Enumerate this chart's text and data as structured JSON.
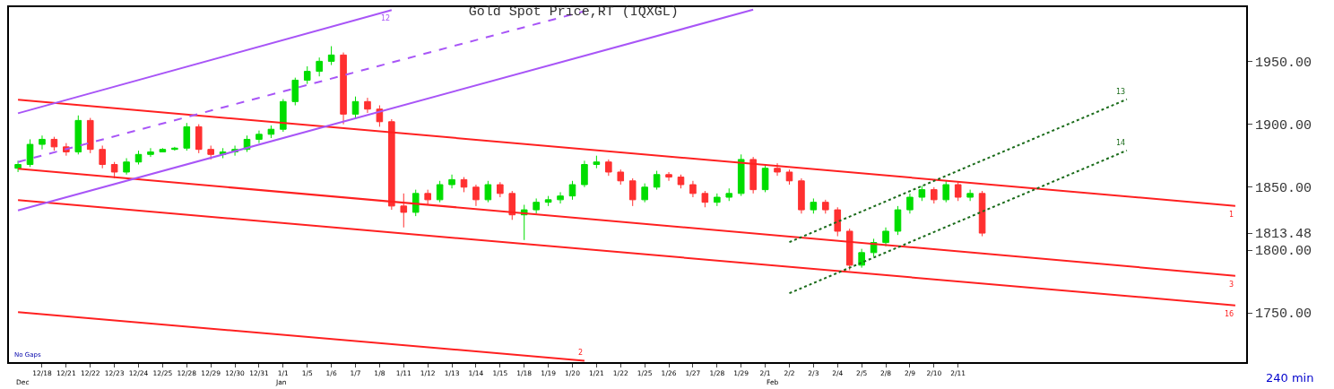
{
  "chart_data": {
    "type": "candlestick",
    "title": "Gold Spot Price,RT (IQXGL)",
    "annotations": [
      "No Gaps",
      "240 min",
      "Dec",
      "Jan",
      "Feb"
    ],
    "categories": [
      null,
      null,
      "12/18",
      null,
      "12/21",
      null,
      "12/22",
      null,
      "12/23",
      null,
      "12/24",
      null,
      "12/25",
      null,
      "12/28",
      null,
      "12/29",
      null,
      "12/30",
      null,
      "12/31",
      null,
      "1/1",
      null,
      "1/5",
      null,
      "1/6",
      null,
      "1/7",
      null,
      "1/8",
      null,
      "1/11",
      null,
      "1/12",
      null,
      "1/13",
      null,
      "1/14",
      null,
      "1/15",
      null,
      "1/18",
      null,
      "1/19",
      null,
      "1/20",
      null,
      "1/21",
      null,
      "1/22",
      null,
      "1/25",
      null,
      "1/26",
      null,
      "1/27",
      null,
      "1/28",
      null,
      "1/29",
      null,
      "2/1",
      null,
      "2/2",
      null,
      "2/3",
      null,
      "2/4",
      null,
      "2/5",
      null,
      "2/8",
      null,
      "2/9",
      null,
      "2/10",
      null,
      "2/11",
      null,
      null,
      null,
      null,
      null,
      null,
      null,
      null,
      null,
      null,
      null,
      null,
      null,
      null,
      null,
      null,
      null,
      null,
      null,
      null,
      null,
      null,
      null
    ],
    "ohlc": [
      [
        1865,
        1871,
        1862,
        1868
      ],
      [
        1868,
        1888,
        1866,
        1884
      ],
      [
        1884,
        1891,
        1880,
        1888
      ],
      [
        1888,
        1890,
        1879,
        1882
      ],
      [
        1882,
        1885,
        1875,
        1878
      ],
      [
        1878,
        1907,
        1876,
        1903
      ],
      [
        1903,
        1905,
        1877,
        1880
      ],
      [
        1880,
        1883,
        1865,
        1868
      ],
      [
        1868,
        1870,
        1857,
        1862
      ],
      [
        1862,
        1873,
        1860,
        1870
      ],
      [
        1870,
        1879,
        1868,
        1876
      ],
      [
        1876,
        1881,
        1874,
        1878
      ],
      [
        1878,
        1881,
        1878,
        1880
      ],
      [
        1880,
        1882,
        1879,
        1881
      ],
      [
        1881,
        1901,
        1879,
        1898
      ],
      [
        1898,
        1900,
        1877,
        1880
      ],
      [
        1880,
        1883,
        1872,
        1876
      ],
      [
        1876,
        1881,
        1873,
        1878
      ],
      [
        1878,
        1883,
        1875,
        1880
      ],
      [
        1880,
        1891,
        1878,
        1888
      ],
      [
        1888,
        1895,
        1885,
        1892
      ],
      [
        1892,
        1899,
        1889,
        1896
      ],
      [
        1896,
        1920,
        1894,
        1918
      ],
      [
        1918,
        1937,
        1915,
        1935
      ],
      [
        1935,
        1946,
        1932,
        1942
      ],
      [
        1942,
        1953,
        1938,
        1950
      ],
      [
        1950,
        1962,
        1947,
        1955
      ],
      [
        1955,
        1957,
        1900,
        1908
      ],
      [
        1908,
        1922,
        1905,
        1918
      ],
      [
        1918,
        1921,
        1909,
        1912
      ],
      [
        1912,
        1915,
        1898,
        1902
      ],
      [
        1902,
        1904,
        1832,
        1835
      ],
      [
        1835,
        1845,
        1818,
        1830
      ],
      [
        1830,
        1848,
        1827,
        1845
      ],
      [
        1845,
        1848,
        1836,
        1840
      ],
      [
        1840,
        1855,
        1838,
        1852
      ],
      [
        1852,
        1860,
        1849,
        1856
      ],
      [
        1856,
        1858,
        1846,
        1850
      ],
      [
        1850,
        1852,
        1835,
        1840
      ],
      [
        1840,
        1855,
        1838,
        1852
      ],
      [
        1852,
        1854,
        1842,
        1845
      ],
      [
        1845,
        1847,
        1824,
        1828
      ],
      [
        1828,
        1836,
        1808,
        1832
      ],
      [
        1832,
        1841,
        1829,
        1838
      ],
      [
        1838,
        1843,
        1835,
        1840
      ],
      [
        1840,
        1846,
        1837,
        1843
      ],
      [
        1843,
        1855,
        1840,
        1852
      ],
      [
        1852,
        1871,
        1850,
        1868
      ],
      [
        1868,
        1875,
        1865,
        1870
      ],
      [
        1870,
        1872,
        1859,
        1862
      ],
      [
        1862,
        1864,
        1852,
        1855
      ],
      [
        1855,
        1857,
        1835,
        1840
      ],
      [
        1840,
        1853,
        1838,
        1850
      ],
      [
        1850,
        1863,
        1848,
        1860
      ],
      [
        1860,
        1862,
        1855,
        1858
      ],
      [
        1858,
        1860,
        1849,
        1852
      ],
      [
        1852,
        1855,
        1842,
        1845
      ],
      [
        1845,
        1847,
        1834,
        1838
      ],
      [
        1838,
        1845,
        1835,
        1842
      ],
      [
        1842,
        1849,
        1839,
        1845
      ],
      [
        1845,
        1876,
        1843,
        1872
      ],
      [
        1872,
        1874,
        1845,
        1848
      ],
      [
        1848,
        1868,
        1846,
        1865
      ],
      [
        1865,
        1869,
        1859,
        1862
      ],
      [
        1862,
        1864,
        1852,
        1855
      ],
      [
        1855,
        1857,
        1829,
        1832
      ],
      [
        1832,
        1841,
        1829,
        1838
      ],
      [
        1838,
        1840,
        1829,
        1832
      ],
      [
        1832,
        1834,
        1811,
        1815
      ],
      [
        1815,
        1817,
        1784,
        1788
      ],
      [
        1788,
        1801,
        1786,
        1798
      ],
      [
        1798,
        1809,
        1795,
        1806
      ],
      [
        1806,
        1818,
        1803,
        1815
      ],
      [
        1815,
        1835,
        1812,
        1832
      ],
      [
        1832,
        1845,
        1829,
        1842
      ],
      [
        1842,
        1851,
        1839,
        1848
      ],
      [
        1848,
        1850,
        1837,
        1840
      ],
      [
        1840,
        1855,
        1838,
        1852
      ],
      [
        1852,
        1854,
        1839,
        1842
      ],
      [
        1842,
        1848,
        1839,
        1845
      ],
      [
        1845,
        1847,
        1811,
        1813.48
      ],
      null,
      null,
      null,
      null,
      null,
      null,
      null,
      null,
      null,
      null,
      null,
      null,
      null,
      null,
      null,
      null,
      null,
      null,
      null,
      null,
      null
    ],
    "series": [
      {
        "type": "line",
        "name": "1",
        "color": "#ff2020",
        "line_style": "solid",
        "values": [
          1919.4,
          null,
          null,
          null,
          null,
          null,
          null,
          null,
          null,
          null,
          null,
          null,
          null,
          null,
          null,
          null,
          null,
          null,
          null,
          null,
          null,
          null,
          null,
          null,
          null,
          null,
          null,
          null,
          null,
          null,
          null,
          null,
          null,
          null,
          null,
          null,
          null,
          null,
          null,
          null,
          null,
          null,
          null,
          null,
          null,
          null,
          null,
          null,
          null,
          null,
          null,
          null,
          null,
          null,
          null,
          null,
          null,
          null,
          null,
          null,
          null,
          null,
          null,
          null,
          null,
          null,
          null,
          null,
          null,
          null,
          null,
          null,
          null,
          null,
          null,
          null,
          null,
          null,
          null,
          null,
          null,
          null,
          null,
          null,
          null,
          null,
          null,
          null,
          null,
          null,
          null,
          null,
          null,
          null,
          null,
          null,
          null,
          null,
          null,
          null,
          null,
          1835.1
        ]
      },
      {
        "type": "line",
        "name": "3",
        "color": "#ff2020",
        "line_style": "solid",
        "values": [
          1864.6,
          null,
          null,
          null,
          null,
          null,
          null,
          null,
          null,
          null,
          null,
          null,
          null,
          null,
          null,
          null,
          null,
          null,
          null,
          null,
          null,
          null,
          null,
          null,
          null,
          null,
          null,
          null,
          null,
          null,
          null,
          null,
          null,
          null,
          null,
          null,
          null,
          null,
          null,
          null,
          null,
          null,
          null,
          null,
          null,
          null,
          null,
          null,
          null,
          null,
          null,
          null,
          null,
          null,
          null,
          null,
          null,
          null,
          null,
          null,
          null,
          null,
          null,
          null,
          null,
          null,
          null,
          null,
          null,
          null,
          null,
          null,
          null,
          null,
          null,
          null,
          null,
          null,
          null,
          null,
          null,
          null,
          null,
          null,
          null,
          null,
          null,
          null,
          null,
          null,
          null,
          null,
          null,
          null,
          null,
          null,
          null,
          null,
          null,
          null,
          null,
          1779.6
        ]
      },
      {
        "type": "line",
        "name": "16",
        "color": "#ff2020",
        "line_style": "solid",
        "values": [
          1839.7,
          null,
          null,
          null,
          null,
          null,
          null,
          null,
          null,
          null,
          null,
          null,
          null,
          null,
          null,
          null,
          null,
          null,
          null,
          null,
          null,
          null,
          null,
          null,
          null,
          null,
          null,
          null,
          null,
          null,
          null,
          null,
          null,
          null,
          null,
          null,
          null,
          null,
          null,
          null,
          null,
          null,
          null,
          null,
          null,
          null,
          null,
          null,
          null,
          null,
          null,
          null,
          null,
          null,
          null,
          null,
          null,
          null,
          null,
          null,
          null,
          null,
          null,
          null,
          null,
          null,
          null,
          null,
          null,
          null,
          null,
          null,
          null,
          null,
          null,
          null,
          null,
          null,
          null,
          null,
          null,
          null,
          null,
          null,
          null,
          null,
          null,
          null,
          null,
          null,
          null,
          null,
          null,
          null,
          null,
          null,
          null,
          null,
          null,
          null,
          null,
          1756.1
        ]
      },
      {
        "type": "line",
        "name": "2",
        "color": "#ff2020",
        "line_style": "solid",
        "values": [
          1750.7,
          null,
          null,
          null,
          null,
          null,
          null,
          null,
          null,
          null,
          null,
          null,
          null,
          null,
          null,
          null,
          null,
          null,
          null,
          null,
          null,
          null,
          null,
          null,
          null,
          null,
          null,
          null,
          null,
          null,
          null,
          null,
          null,
          null,
          null,
          null,
          null,
          null,
          null,
          null,
          null,
          null,
          null,
          null,
          null,
          null,
          null,
          1712.1,
          null,
          null,
          null,
          null,
          null,
          null,
          null,
          null,
          null,
          null,
          null,
          null,
          null,
          null,
          null,
          null,
          null,
          null,
          null,
          null,
          null,
          null,
          null,
          null,
          null,
          null,
          null,
          null,
          null,
          null,
          null,
          null,
          null,
          null,
          null,
          null,
          null,
          null,
          null,
          null,
          null,
          null,
          null,
          null,
          null,
          null,
          null,
          null,
          null,
          null,
          null,
          null,
          null,
          null
        ]
      },
      {
        "type": "line",
        "name": "12",
        "color": "#a855f7",
        "line_style": "solid",
        "values": [
          1908.7,
          null,
          null,
          null,
          null,
          null,
          null,
          null,
          null,
          null,
          null,
          null,
          null,
          null,
          null,
          null,
          null,
          null,
          null,
          null,
          null,
          null,
          null,
          null,
          null,
          null,
          null,
          null,
          null,
          null,
          null,
          1990.7,
          null,
          null,
          null,
          null,
          null,
          null,
          null,
          null,
          null,
          null,
          null,
          null,
          null,
          null,
          null,
          null,
          null,
          null,
          null,
          null,
          null,
          null,
          null,
          null,
          null,
          null,
          null,
          null,
          null,
          null,
          null,
          null,
          null,
          null,
          null,
          null,
          null,
          null,
          null,
          null,
          null,
          null,
          null,
          null,
          null,
          null,
          null,
          null,
          null,
          null,
          null,
          null,
          null,
          null,
          null,
          null,
          null,
          null,
          null,
          null,
          null,
          null,
          null,
          null,
          null,
          null,
          null,
          null,
          null,
          null
        ]
      },
      {
        "type": "line",
        "color": "#a855f7",
        "line_style": "dashed",
        "values": [
          1870.0,
          null,
          null,
          null,
          null,
          null,
          null,
          null,
          null,
          null,
          null,
          null,
          null,
          null,
          null,
          null,
          null,
          null,
          null,
          null,
          null,
          null,
          null,
          null,
          null,
          null,
          null,
          null,
          null,
          null,
          null,
          null,
          null,
          null,
          null,
          null,
          null,
          null,
          null,
          null,
          null,
          null,
          null,
          null,
          null,
          null,
          null,
          1989.8,
          null,
          null,
          null,
          null,
          null,
          null,
          null,
          null,
          null,
          null,
          null,
          null,
          null,
          null,
          null,
          null,
          null,
          null,
          null,
          null,
          null,
          null,
          null,
          null,
          null,
          null,
          null,
          null,
          null,
          null,
          null,
          null,
          null,
          null,
          null,
          null,
          null,
          null,
          null,
          null,
          null,
          null,
          null,
          null,
          null,
          null,
          null,
          null,
          null,
          null,
          null,
          null,
          null,
          null
        ]
      },
      {
        "type": "line",
        "color": "#a855f7",
        "line_style": "solid",
        "values": [
          1831.5,
          null,
          null,
          null,
          null,
          null,
          null,
          null,
          null,
          null,
          null,
          null,
          null,
          null,
          null,
          null,
          null,
          null,
          null,
          null,
          null,
          null,
          null,
          null,
          null,
          null,
          null,
          null,
          null,
          null,
          null,
          null,
          null,
          null,
          null,
          null,
          null,
          null,
          null,
          null,
          null,
          null,
          null,
          null,
          null,
          null,
          null,
          null,
          null,
          null,
          null,
          null,
          null,
          null,
          null,
          null,
          null,
          null,
          null,
          null,
          null,
          1991.0,
          null,
          null,
          null,
          null,
          null,
          null,
          null,
          null,
          null,
          null,
          null,
          null,
          null,
          null,
          null,
          null,
          null,
          null,
          null,
          null,
          null,
          null,
          null,
          null,
          null,
          null,
          null,
          null,
          null,
          null,
          null,
          null,
          null,
          null,
          null,
          null,
          null,
          null,
          null,
          null
        ]
      },
      {
        "type": "line",
        "name": "13",
        "color": "#1a6b1a",
        "line_style": "dotted",
        "values": [
          null,
          null,
          null,
          null,
          null,
          null,
          null,
          null,
          null,
          null,
          null,
          null,
          null,
          null,
          null,
          null,
          null,
          null,
          null,
          null,
          null,
          null,
          null,
          null,
          null,
          null,
          null,
          null,
          null,
          null,
          null,
          null,
          null,
          null,
          null,
          null,
          null,
          null,
          null,
          null,
          null,
          null,
          null,
          null,
          null,
          null,
          null,
          null,
          null,
          null,
          null,
          null,
          null,
          null,
          null,
          null,
          null,
          null,
          null,
          null,
          null,
          null,
          null,
          null,
          1806.3,
          null,
          null,
          null,
          null,
          null,
          null,
          null,
          null,
          null,
          null,
          null,
          null,
          null,
          null,
          null,
          null,
          null,
          null,
          null,
          null,
          null,
          null,
          null,
          null,
          null,
          null,
          null,
          1919.8,
          null,
          null,
          null,
          null,
          null,
          null,
          null,
          null,
          null
        ]
      },
      {
        "type": "line",
        "name": "14",
        "color": "#1a6b1a",
        "line_style": "dotted",
        "values": [
          null,
          null,
          null,
          null,
          null,
          null,
          null,
          null,
          null,
          null,
          null,
          null,
          null,
          null,
          null,
          null,
          null,
          null,
          null,
          null,
          null,
          null,
          null,
          null,
          null,
          null,
          null,
          null,
          null,
          null,
          null,
          null,
          null,
          null,
          null,
          null,
          null,
          null,
          null,
          null,
          null,
          null,
          null,
          null,
          null,
          null,
          null,
          null,
          null,
          null,
          null,
          null,
          null,
          null,
          null,
          null,
          null,
          null,
          null,
          null,
          null,
          null,
          null,
          null,
          1765.7,
          null,
          null,
          null,
          null,
          null,
          null,
          null,
          null,
          null,
          null,
          null,
          null,
          null,
          null,
          null,
          null,
          null,
          null,
          null,
          null,
          null,
          null,
          null,
          null,
          null,
          null,
          null,
          1879.2,
          null,
          null,
          null,
          null,
          null,
          null,
          null,
          null,
          null
        ]
      }
    ],
    "ylim": [
      1711,
      1993
    ],
    "yticks": [
      {
        "value": 1750,
        "label": "1750.00"
      },
      {
        "value": 1800,
        "label": "1800.00"
      },
      {
        "value": 1813.48,
        "label": "1813.48"
      },
      {
        "value": 1850,
        "label": "1850.00"
      },
      {
        "value": 1900,
        "label": "1900.00"
      },
      {
        "value": 1950,
        "label": "1950.00"
      }
    ],
    "grid": false,
    "legend": false
  }
}
